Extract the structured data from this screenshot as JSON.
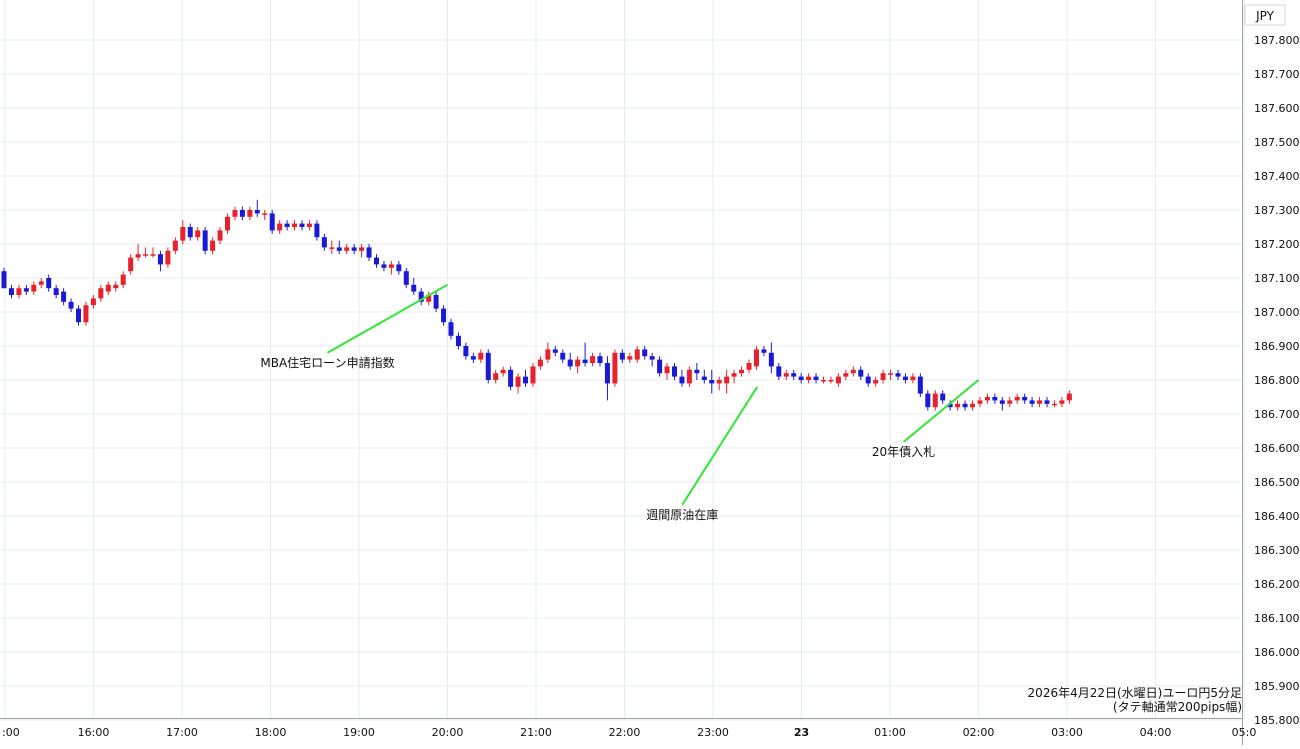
{
  "chart_data": {
    "type": "candlestick",
    "currency_label": "JPY",
    "y_ticks": [
      "187.800",
      "187.700",
      "187.600",
      "187.500",
      "187.400",
      "187.300",
      "187.200",
      "187.100",
      "187.000",
      "186.900",
      "186.800",
      "186.700",
      "186.600",
      "186.500",
      "186.400",
      "186.300",
      "186.200",
      "186.100",
      "186.000",
      "185.900",
      "185.800"
    ],
    "ylim": [
      185.78,
      187.83
    ],
    "x_ticks": [
      ":00",
      "16:00",
      "17:00",
      "18:00",
      "19:00",
      "20:00",
      "21:00",
      "22:00",
      "23:00",
      "23",
      "01:00",
      "02:00",
      "03:00",
      "04:00",
      "05:0"
    ],
    "grid": true,
    "colors": {
      "up": "#e8222c",
      "down": "#1a1ad6",
      "grid": "#e4ecef",
      "annotation_line": "#33e633",
      "text": "#111111"
    },
    "annotations": [
      {
        "text": "MBA住宅ローン申請指数",
        "time": "20:00",
        "price": 187.08
      },
      {
        "text": "週間原油在庫",
        "time": "23:30",
        "price": 186.78
      },
      {
        "text": "20年債入札",
        "time": "02:00",
        "price": 186.8
      }
    ],
    "caption_line1": "2026年4月22日(水曜日)ユーロ円5分足",
    "caption_line2": "(タテ軸通常200pips幅)",
    "candles": [
      {
        "o": 187.12,
        "h": 187.13,
        "l": 187.07,
        "c": 187.07
      },
      {
        "o": 187.07,
        "h": 187.08,
        "l": 187.04,
        "c": 187.05
      },
      {
        "o": 187.05,
        "h": 187.08,
        "l": 187.04,
        "c": 187.07
      },
      {
        "o": 187.07,
        "h": 187.08,
        "l": 187.05,
        "c": 187.06
      },
      {
        "o": 187.06,
        "h": 187.09,
        "l": 187.05,
        "c": 187.08
      },
      {
        "o": 187.08,
        "h": 187.1,
        "l": 187.07,
        "c": 187.09
      },
      {
        "o": 187.1,
        "h": 187.11,
        "l": 187.06,
        "c": 187.07
      },
      {
        "o": 187.07,
        "h": 187.08,
        "l": 187.04,
        "c": 187.05
      },
      {
        "o": 187.06,
        "h": 187.07,
        "l": 187.02,
        "c": 187.03
      },
      {
        "o": 187.03,
        "h": 187.04,
        "l": 187.0,
        "c": 187.01
      },
      {
        "o": 187.01,
        "h": 187.02,
        "l": 186.96,
        "c": 186.97
      },
      {
        "o": 186.97,
        "h": 187.03,
        "l": 186.96,
        "c": 187.02
      },
      {
        "o": 187.02,
        "h": 187.05,
        "l": 187.01,
        "c": 187.04
      },
      {
        "o": 187.04,
        "h": 187.08,
        "l": 187.03,
        "c": 187.07
      },
      {
        "o": 187.06,
        "h": 187.09,
        "l": 187.05,
        "c": 187.08
      },
      {
        "o": 187.07,
        "h": 187.09,
        "l": 187.06,
        "c": 187.08
      },
      {
        "o": 187.08,
        "h": 187.12,
        "l": 187.07,
        "c": 187.11
      },
      {
        "o": 187.12,
        "h": 187.17,
        "l": 187.11,
        "c": 187.16
      },
      {
        "o": 187.16,
        "h": 187.2,
        "l": 187.15,
        "c": 187.17
      },
      {
        "o": 187.17,
        "h": 187.19,
        "l": 187.16,
        "c": 187.17
      },
      {
        "o": 187.17,
        "h": 187.19,
        "l": 187.16,
        "c": 187.17
      },
      {
        "o": 187.17,
        "h": 187.18,
        "l": 187.12,
        "c": 187.14
      },
      {
        "o": 187.14,
        "h": 187.19,
        "l": 187.13,
        "c": 187.18
      },
      {
        "o": 187.18,
        "h": 187.22,
        "l": 187.17,
        "c": 187.21
      },
      {
        "o": 187.21,
        "h": 187.27,
        "l": 187.2,
        "c": 187.25
      },
      {
        "o": 187.25,
        "h": 187.26,
        "l": 187.21,
        "c": 187.22
      },
      {
        "o": 187.22,
        "h": 187.25,
        "l": 187.21,
        "c": 187.24
      },
      {
        "o": 187.24,
        "h": 187.25,
        "l": 187.17,
        "c": 187.18
      },
      {
        "o": 187.18,
        "h": 187.22,
        "l": 187.17,
        "c": 187.21
      },
      {
        "o": 187.21,
        "h": 187.25,
        "l": 187.2,
        "c": 187.24
      },
      {
        "o": 187.24,
        "h": 187.29,
        "l": 187.23,
        "c": 187.28
      },
      {
        "o": 187.28,
        "h": 187.31,
        "l": 187.27,
        "c": 187.3
      },
      {
        "o": 187.3,
        "h": 187.31,
        "l": 187.27,
        "c": 187.28
      },
      {
        "o": 187.28,
        "h": 187.31,
        "l": 187.27,
        "c": 187.3
      },
      {
        "o": 187.3,
        "h": 187.33,
        "l": 187.28,
        "c": 187.29
      },
      {
        "o": 187.29,
        "h": 187.3,
        "l": 187.27,
        "c": 187.29
      },
      {
        "o": 187.29,
        "h": 187.3,
        "l": 187.23,
        "c": 187.24
      },
      {
        "o": 187.24,
        "h": 187.27,
        "l": 187.23,
        "c": 187.26
      },
      {
        "o": 187.26,
        "h": 187.27,
        "l": 187.24,
        "c": 187.25
      },
      {
        "o": 187.25,
        "h": 187.27,
        "l": 187.24,
        "c": 187.26
      },
      {
        "o": 187.26,
        "h": 187.27,
        "l": 187.24,
        "c": 187.25
      },
      {
        "o": 187.25,
        "h": 187.27,
        "l": 187.24,
        "c": 187.26
      },
      {
        "o": 187.26,
        "h": 187.27,
        "l": 187.21,
        "c": 187.22
      },
      {
        "o": 187.22,
        "h": 187.23,
        "l": 187.18,
        "c": 187.19
      },
      {
        "o": 187.19,
        "h": 187.21,
        "l": 187.17,
        "c": 187.19
      },
      {
        "o": 187.19,
        "h": 187.21,
        "l": 187.17,
        "c": 187.18
      },
      {
        "o": 187.18,
        "h": 187.2,
        "l": 187.17,
        "c": 187.19
      },
      {
        "o": 187.19,
        "h": 187.2,
        "l": 187.17,
        "c": 187.18
      },
      {
        "o": 187.18,
        "h": 187.2,
        "l": 187.16,
        "c": 187.19
      },
      {
        "o": 187.19,
        "h": 187.2,
        "l": 187.15,
        "c": 187.16
      },
      {
        "o": 187.16,
        "h": 187.17,
        "l": 187.13,
        "c": 187.14
      },
      {
        "o": 187.14,
        "h": 187.15,
        "l": 187.12,
        "c": 187.13
      },
      {
        "o": 187.13,
        "h": 187.15,
        "l": 187.11,
        "c": 187.14
      },
      {
        "o": 187.14,
        "h": 187.15,
        "l": 187.11,
        "c": 187.12
      },
      {
        "o": 187.12,
        "h": 187.13,
        "l": 187.07,
        "c": 187.08
      },
      {
        "o": 187.08,
        "h": 187.1,
        "l": 187.05,
        "c": 187.06
      },
      {
        "o": 187.06,
        "h": 187.07,
        "l": 187.02,
        "c": 187.03
      },
      {
        "o": 187.03,
        "h": 187.06,
        "l": 187.02,
        "c": 187.05
      },
      {
        "o": 187.05,
        "h": 187.06,
        "l": 187.0,
        "c": 187.01
      },
      {
        "o": 187.01,
        "h": 187.02,
        "l": 186.96,
        "c": 186.97
      },
      {
        "o": 186.97,
        "h": 186.98,
        "l": 186.92,
        "c": 186.93
      },
      {
        "o": 186.93,
        "h": 186.94,
        "l": 186.89,
        "c": 186.9
      },
      {
        "o": 186.9,
        "h": 186.91,
        "l": 186.86,
        "c": 186.87
      },
      {
        "o": 186.87,
        "h": 186.88,
        "l": 186.85,
        "c": 186.86
      },
      {
        "o": 186.86,
        "h": 186.89,
        "l": 186.85,
        "c": 186.88
      },
      {
        "o": 186.88,
        "h": 186.89,
        "l": 186.79,
        "c": 186.8
      },
      {
        "o": 186.8,
        "h": 186.83,
        "l": 186.79,
        "c": 186.82
      },
      {
        "o": 186.82,
        "h": 186.84,
        "l": 186.81,
        "c": 186.83
      },
      {
        "o": 186.83,
        "h": 186.84,
        "l": 186.77,
        "c": 186.78
      },
      {
        "o": 186.78,
        "h": 186.82,
        "l": 186.76,
        "c": 186.81
      },
      {
        "o": 186.81,
        "h": 186.83,
        "l": 186.78,
        "c": 186.79
      },
      {
        "o": 186.79,
        "h": 186.85,
        "l": 186.78,
        "c": 186.84
      },
      {
        "o": 186.84,
        "h": 186.87,
        "l": 186.83,
        "c": 186.86
      },
      {
        "o": 186.86,
        "h": 186.91,
        "l": 186.85,
        "c": 186.89
      },
      {
        "o": 186.89,
        "h": 186.9,
        "l": 186.87,
        "c": 186.88
      },
      {
        "o": 186.88,
        "h": 186.89,
        "l": 186.85,
        "c": 186.86
      },
      {
        "o": 186.86,
        "h": 186.88,
        "l": 186.83,
        "c": 186.84
      },
      {
        "o": 186.84,
        "h": 186.87,
        "l": 186.82,
        "c": 186.86
      },
      {
        "o": 186.86,
        "h": 186.91,
        "l": 186.84,
        "c": 186.85
      },
      {
        "o": 186.85,
        "h": 186.88,
        "l": 186.84,
        "c": 186.87
      },
      {
        "o": 186.87,
        "h": 186.88,
        "l": 186.84,
        "c": 186.85
      },
      {
        "o": 186.85,
        "h": 186.87,
        "l": 186.74,
        "c": 186.79
      },
      {
        "o": 186.79,
        "h": 186.89,
        "l": 186.78,
        "c": 186.88
      },
      {
        "o": 186.88,
        "h": 186.89,
        "l": 186.85,
        "c": 186.86
      },
      {
        "o": 186.86,
        "h": 186.88,
        "l": 186.85,
        "c": 186.87
      },
      {
        "o": 186.86,
        "h": 186.9,
        "l": 186.85,
        "c": 186.89
      },
      {
        "o": 186.89,
        "h": 186.9,
        "l": 186.86,
        "c": 186.87
      },
      {
        "o": 186.87,
        "h": 186.88,
        "l": 186.84,
        "c": 186.86
      },
      {
        "o": 186.86,
        "h": 186.87,
        "l": 186.81,
        "c": 186.82
      },
      {
        "o": 186.82,
        "h": 186.85,
        "l": 186.8,
        "c": 186.84
      },
      {
        "o": 186.84,
        "h": 186.85,
        "l": 186.8,
        "c": 186.81
      },
      {
        "o": 186.81,
        "h": 186.83,
        "l": 186.78,
        "c": 186.79
      },
      {
        "o": 186.79,
        "h": 186.84,
        "l": 186.78,
        "c": 186.83
      },
      {
        "o": 186.83,
        "h": 186.85,
        "l": 186.8,
        "c": 186.82
      },
      {
        "o": 186.81,
        "h": 186.83,
        "l": 186.79,
        "c": 186.8
      },
      {
        "o": 186.8,
        "h": 186.83,
        "l": 186.76,
        "c": 186.79
      },
      {
        "o": 186.79,
        "h": 186.81,
        "l": 186.77,
        "c": 186.8
      },
      {
        "o": 186.79,
        "h": 186.83,
        "l": 186.76,
        "c": 186.81
      },
      {
        "o": 186.81,
        "h": 186.83,
        "l": 186.79,
        "c": 186.82
      },
      {
        "o": 186.82,
        "h": 186.84,
        "l": 186.81,
        "c": 186.83
      },
      {
        "o": 186.83,
        "h": 186.86,
        "l": 186.82,
        "c": 186.85
      },
      {
        "o": 186.84,
        "h": 186.9,
        "l": 186.83,
        "c": 186.89
      },
      {
        "o": 186.89,
        "h": 186.9,
        "l": 186.87,
        "c": 186.88
      },
      {
        "o": 186.88,
        "h": 186.91,
        "l": 186.82,
        "c": 186.84
      },
      {
        "o": 186.84,
        "h": 186.85,
        "l": 186.8,
        "c": 186.81
      },
      {
        "o": 186.81,
        "h": 186.83,
        "l": 186.8,
        "c": 186.82
      },
      {
        "o": 186.82,
        "h": 186.83,
        "l": 186.8,
        "c": 186.81
      },
      {
        "o": 186.81,
        "h": 186.82,
        "l": 186.79,
        "c": 186.8
      },
      {
        "o": 186.8,
        "h": 186.82,
        "l": 186.79,
        "c": 186.81
      },
      {
        "o": 186.81,
        "h": 186.82,
        "l": 186.79,
        "c": 186.8
      },
      {
        "o": 186.8,
        "h": 186.81,
        "l": 186.79,
        "c": 186.8
      },
      {
        "o": 186.8,
        "h": 186.81,
        "l": 186.79,
        "c": 186.8
      },
      {
        "o": 186.79,
        "h": 186.82,
        "l": 186.78,
        "c": 186.81
      },
      {
        "o": 186.81,
        "h": 186.83,
        "l": 186.8,
        "c": 186.82
      },
      {
        "o": 186.82,
        "h": 186.84,
        "l": 186.81,
        "c": 186.83
      },
      {
        "o": 186.83,
        "h": 186.84,
        "l": 186.8,
        "c": 186.81
      },
      {
        "o": 186.81,
        "h": 186.82,
        "l": 186.78,
        "c": 186.79
      },
      {
        "o": 186.79,
        "h": 186.81,
        "l": 186.78,
        "c": 186.8
      },
      {
        "o": 186.8,
        "h": 186.83,
        "l": 186.79,
        "c": 186.82
      },
      {
        "o": 186.82,
        "h": 186.83,
        "l": 186.8,
        "c": 186.82
      },
      {
        "o": 186.82,
        "h": 186.83,
        "l": 186.8,
        "c": 186.81
      },
      {
        "o": 186.81,
        "h": 186.82,
        "l": 186.79,
        "c": 186.8
      },
      {
        "o": 186.8,
        "h": 186.82,
        "l": 186.79,
        "c": 186.81
      },
      {
        "o": 186.81,
        "h": 186.82,
        "l": 186.75,
        "c": 186.76
      },
      {
        "o": 186.76,
        "h": 186.77,
        "l": 186.71,
        "c": 186.72
      },
      {
        "o": 186.72,
        "h": 186.77,
        "l": 186.71,
        "c": 186.76
      },
      {
        "o": 186.76,
        "h": 186.77,
        "l": 186.73,
        "c": 186.74
      },
      {
        "o": 186.73,
        "h": 186.74,
        "l": 186.71,
        "c": 186.72
      },
      {
        "o": 186.72,
        "h": 186.74,
        "l": 186.71,
        "c": 186.73
      },
      {
        "o": 186.73,
        "h": 186.74,
        "l": 186.71,
        "c": 186.72
      },
      {
        "o": 186.72,
        "h": 186.74,
        "l": 186.71,
        "c": 186.73
      },
      {
        "o": 186.73,
        "h": 186.75,
        "l": 186.72,
        "c": 186.74
      },
      {
        "o": 186.74,
        "h": 186.76,
        "l": 186.73,
        "c": 186.75
      },
      {
        "o": 186.75,
        "h": 186.76,
        "l": 186.73,
        "c": 186.74
      },
      {
        "o": 186.74,
        "h": 186.75,
        "l": 186.71,
        "c": 186.73
      },
      {
        "o": 186.73,
        "h": 186.75,
        "l": 186.72,
        "c": 186.74
      },
      {
        "o": 186.74,
        "h": 186.76,
        "l": 186.73,
        "c": 186.75
      },
      {
        "o": 186.75,
        "h": 186.76,
        "l": 186.73,
        "c": 186.74
      },
      {
        "o": 186.74,
        "h": 186.75,
        "l": 186.72,
        "c": 186.73
      },
      {
        "o": 186.73,
        "h": 186.75,
        "l": 186.72,
        "c": 186.74
      },
      {
        "o": 186.74,
        "h": 186.75,
        "l": 186.72,
        "c": 186.73
      },
      {
        "o": 186.73,
        "h": 186.74,
        "l": 186.72,
        "c": 186.73
      },
      {
        "o": 186.73,
        "h": 186.75,
        "l": 186.72,
        "c": 186.74
      },
      {
        "o": 186.74,
        "h": 186.77,
        "l": 186.73,
        "c": 186.76
      }
    ]
  }
}
